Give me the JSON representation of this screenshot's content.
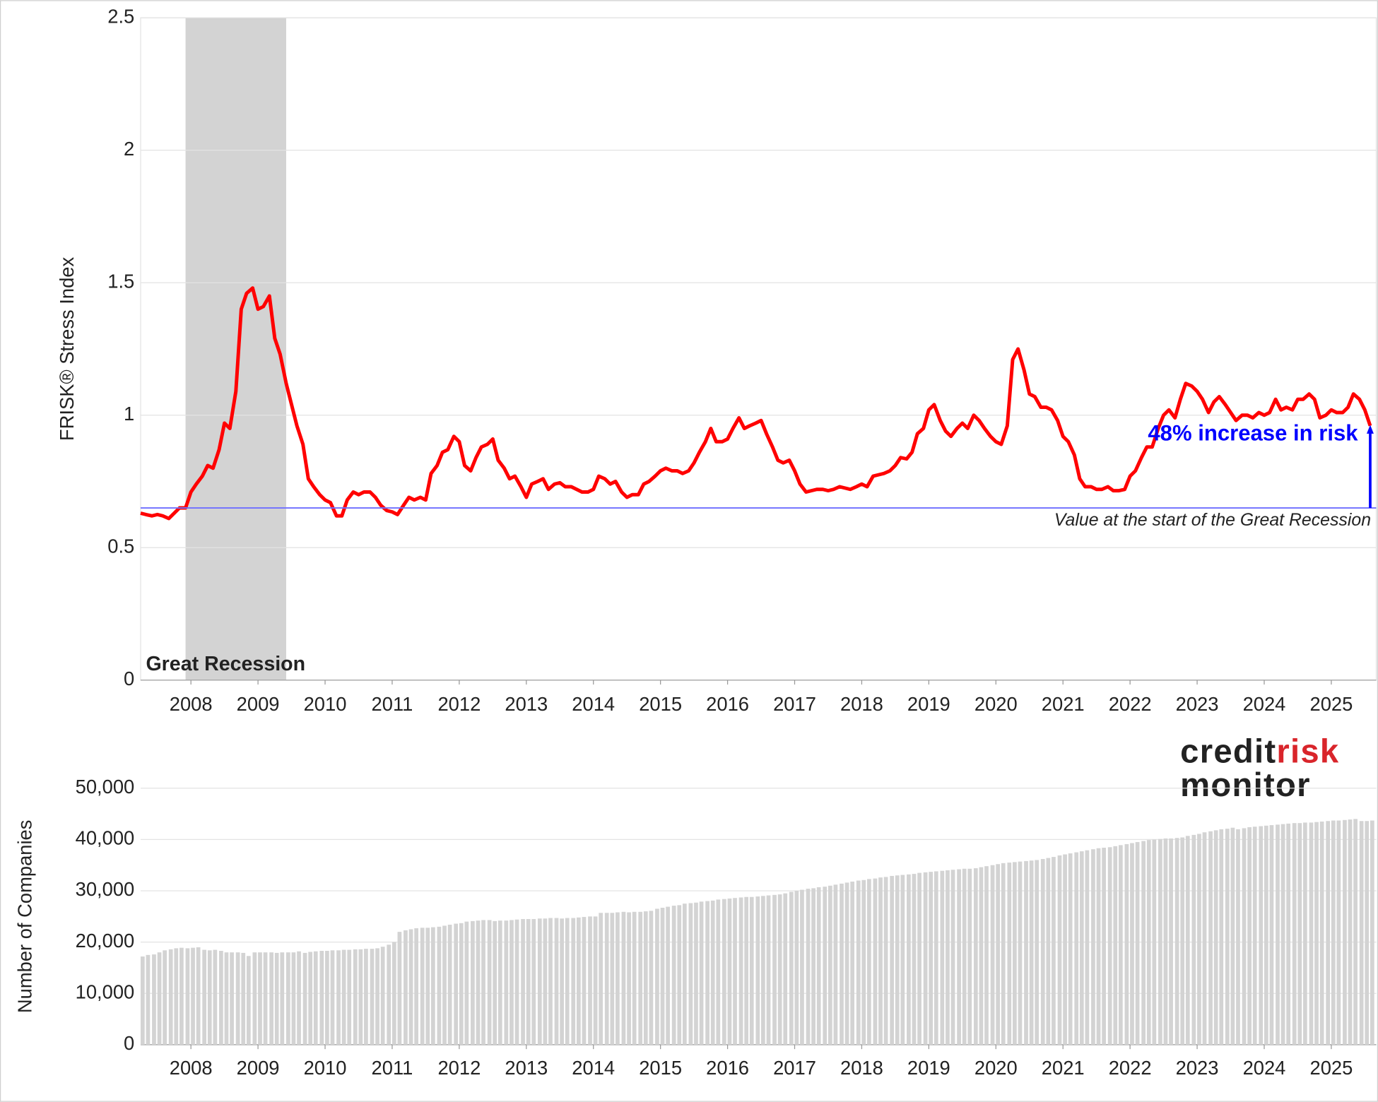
{
  "chart_data": [
    {
      "type": "line",
      "y_label": "FRISK® Stress Index",
      "color": "#ff0000",
      "xlim": [
        2007.25,
        2025.67
      ],
      "xticks": [
        2008,
        2009,
        2010,
        2011,
        2012,
        2013,
        2014,
        2015,
        2016,
        2017,
        2018,
        2019,
        2020,
        2021,
        2022,
        2023,
        2024,
        2025
      ],
      "ylim": [
        0,
        2.5
      ],
      "yticks": [
        0,
        0.5,
        1,
        1.5,
        2,
        2.5
      ],
      "grid": true,
      "shaded_region": {
        "x": [
          2007.92,
          2009.42
        ],
        "label": "Great Recession",
        "color": "#d3d3d3"
      },
      "reference_line": {
        "value": 0.65,
        "label": "Value at the start of the Great Recession",
        "color": "#6f6fff"
      },
      "annotation": {
        "text": "48% increase in risk",
        "color": "#0000ff"
      },
      "x": [
        2007.25,
        2007.33,
        2007.42,
        2007.5,
        2007.58,
        2007.67,
        2007.75,
        2007.83,
        2007.92,
        2008,
        2008.08,
        2008.17,
        2008.25,
        2008.33,
        2008.42,
        2008.5,
        2008.58,
        2008.67,
        2008.75,
        2008.83,
        2008.92,
        2009,
        2009.08,
        2009.17,
        2009.25,
        2009.33,
        2009.42,
        2009.5,
        2009.58,
        2009.67,
        2009.75,
        2009.83,
        2009.92,
        2010,
        2010.08,
        2010.17,
        2010.25,
        2010.33,
        2010.42,
        2010.5,
        2010.58,
        2010.67,
        2010.75,
        2010.83,
        2010.92,
        2011,
        2011.08,
        2011.17,
        2011.25,
        2011.33,
        2011.42,
        2011.5,
        2011.58,
        2011.67,
        2011.75,
        2011.83,
        2011.92,
        2012,
        2012.08,
        2012.17,
        2012.25,
        2012.33,
        2012.42,
        2012.5,
        2012.58,
        2012.67,
        2012.75,
        2012.83,
        2012.92,
        2013,
        2013.08,
        2013.17,
        2013.25,
        2013.33,
        2013.42,
        2013.5,
        2013.58,
        2013.67,
        2013.75,
        2013.83,
        2013.92,
        2014,
        2014.08,
        2014.17,
        2014.25,
        2014.33,
        2014.42,
        2014.5,
        2014.58,
        2014.67,
        2014.75,
        2014.83,
        2014.92,
        2015,
        2015.08,
        2015.17,
        2015.25,
        2015.33,
        2015.42,
        2015.5,
        2015.58,
        2015.67,
        2015.75,
        2015.83,
        2015.92,
        2016,
        2016.08,
        2016.17,
        2016.25,
        2016.33,
        2016.42,
        2016.5,
        2016.58,
        2016.67,
        2016.75,
        2016.83,
        2016.92,
        2017,
        2017.08,
        2017.17,
        2017.25,
        2017.33,
        2017.42,
        2017.5,
        2017.58,
        2017.67,
        2017.75,
        2017.83,
        2017.92,
        2018,
        2018.08,
        2018.17,
        2018.25,
        2018.33,
        2018.42,
        2018.5,
        2018.58,
        2018.67,
        2018.75,
        2018.83,
        2018.92,
        2019,
        2019.08,
        2019.17,
        2019.25,
        2019.33,
        2019.42,
        2019.5,
        2019.58,
        2019.67,
        2019.75,
        2019.83,
        2019.92,
        2020,
        2020.08,
        2020.17,
        2020.25,
        2020.33,
        2020.42,
        2020.5,
        2020.58,
        2020.67,
        2020.75,
        2020.83,
        2020.92,
        2021,
        2021.08,
        2021.17,
        2021.25,
        2021.33,
        2021.42,
        2021.5,
        2021.58,
        2021.67,
        2021.75,
        2021.83,
        2021.92,
        2022,
        2022.08,
        2022.17,
        2022.25,
        2022.33,
        2022.42,
        2022.5,
        2022.58,
        2022.67,
        2022.75,
        2022.83,
        2022.92,
        2023,
        2023.08,
        2023.17,
        2023.25,
        2023.33,
        2023.42,
        2023.5,
        2023.58,
        2023.67,
        2023.75,
        2023.83,
        2023.92,
        2024,
        2024.08,
        2024.17,
        2024.25,
        2024.33,
        2024.42,
        2024.5,
        2024.58,
        2024.67,
        2024.75,
        2024.83,
        2024.92,
        2025,
        2025.08,
        2025.17,
        2025.25,
        2025.33,
        2025.42,
        2025.5,
        2025.58
      ],
      "values": [
        0.63,
        0.625,
        0.62,
        0.625,
        0.62,
        0.61,
        0.63,
        0.65,
        0.65,
        0.71,
        0.74,
        0.77,
        0.81,
        0.8,
        0.87,
        0.97,
        0.95,
        1.09,
        1.4,
        1.46,
        1.48,
        1.4,
        1.41,
        1.45,
        1.29,
        1.23,
        1.12,
        1.04,
        0.96,
        0.89,
        0.76,
        0.73,
        0.7,
        0.68,
        0.67,
        0.62,
        0.62,
        0.68,
        0.71,
        0.7,
        0.71,
        0.71,
        0.69,
        0.66,
        0.64,
        0.635,
        0.625,
        0.66,
        0.69,
        0.68,
        0.69,
        0.68,
        0.78,
        0.81,
        0.86,
        0.87,
        0.92,
        0.9,
        0.81,
        0.79,
        0.84,
        0.88,
        0.89,
        0.91,
        0.83,
        0.8,
        0.76,
        0.77,
        0.73,
        0.69,
        0.74,
        0.75,
        0.76,
        0.72,
        0.74,
        0.745,
        0.73,
        0.73,
        0.72,
        0.71,
        0.71,
        0.72,
        0.77,
        0.76,
        0.74,
        0.75,
        0.71,
        0.69,
        0.7,
        0.7,
        0.74,
        0.75,
        0.77,
        0.79,
        0.8,
        0.79,
        0.79,
        0.78,
        0.79,
        0.82,
        0.86,
        0.9,
        0.95,
        0.9,
        0.9,
        0.91,
        0.95,
        0.99,
        0.95,
        0.96,
        0.97,
        0.98,
        0.93,
        0.88,
        0.83,
        0.82,
        0.83,
        0.79,
        0.74,
        0.71,
        0.715,
        0.72,
        0.72,
        0.715,
        0.72,
        0.73,
        0.725,
        0.72,
        0.73,
        0.74,
        0.73,
        0.77,
        0.775,
        0.78,
        0.79,
        0.81,
        0.84,
        0.835,
        0.86,
        0.93,
        0.95,
        1.02,
        1.04,
        0.98,
        0.94,
        0.92,
        0.95,
        0.97,
        0.95,
        1.0,
        0.98,
        0.95,
        0.92,
        0.9,
        0.89,
        0.96,
        1.21,
        1.25,
        1.17,
        1.08,
        1.07,
        1.03,
        1.03,
        1.02,
        0.98,
        0.92,
        0.9,
        0.85,
        0.76,
        0.73,
        0.73,
        0.72,
        0.72,
        0.73,
        0.715,
        0.715,
        0.72,
        0.77,
        0.79,
        0.84,
        0.88,
        0.88,
        0.95,
        1.0,
        1.02,
        0.99,
        1.06,
        1.12,
        1.11,
        1.09,
        1.06,
        1.01,
        1.05,
        1.07,
        1.04,
        1.01,
        0.98,
        1.0,
        1.0,
        0.99,
        1.01,
        1.0,
        1.01,
        1.06,
        1.02,
        1.03,
        1.02,
        1.06,
        1.06,
        1.08,
        1.06,
        0.99,
        1.0,
        1.02,
        1.01,
        1.01,
        1.03,
        1.08,
        1.06,
        1.02,
        0.96
      ]
    },
    {
      "type": "bar",
      "y_label": "Number of Companies",
      "color": "#d3d3d3",
      "xlim": [
        2007.25,
        2025.67
      ],
      "xticks": [
        2008,
        2009,
        2010,
        2011,
        2012,
        2013,
        2014,
        2015,
        2016,
        2017,
        2018,
        2019,
        2020,
        2021,
        2022,
        2023,
        2024,
        2025
      ],
      "ylim": [
        0,
        50000
      ],
      "yticks": [
        0,
        {
          "value": 10000,
          "label": "10,000"
        },
        {
          "value": 20000,
          "label": "20,000"
        },
        {
          "value": 30000,
          "label": "30,000"
        },
        {
          "value": 40000,
          "label": "40,000"
        },
        {
          "value": 50000,
          "label": "50,000"
        }
      ],
      "grid": true,
      "x": [
        2007.25,
        2007.33,
        2007.42,
        2007.5,
        2007.58,
        2007.67,
        2007.75,
        2007.83,
        2007.92,
        2008,
        2008.08,
        2008.17,
        2008.25,
        2008.33,
        2008.42,
        2008.5,
        2008.58,
        2008.67,
        2008.75,
        2008.83,
        2008.92,
        2009,
        2009.08,
        2009.17,
        2009.25,
        2009.33,
        2009.42,
        2009.5,
        2009.58,
        2009.67,
        2009.75,
        2009.83,
        2009.92,
        2010,
        2010.08,
        2010.17,
        2010.25,
        2010.33,
        2010.42,
        2010.5,
        2010.58,
        2010.67,
        2010.75,
        2010.83,
        2010.92,
        2011,
        2011.08,
        2011.17,
        2011.25,
        2011.33,
        2011.42,
        2011.5,
        2011.58,
        2011.67,
        2011.75,
        2011.83,
        2011.92,
        2012,
        2012.08,
        2012.17,
        2012.25,
        2012.33,
        2012.42,
        2012.5,
        2012.58,
        2012.67,
        2012.75,
        2012.83,
        2012.92,
        2013,
        2013.08,
        2013.17,
        2013.25,
        2013.33,
        2013.42,
        2013.5,
        2013.58,
        2013.67,
        2013.75,
        2013.83,
        2013.92,
        2014,
        2014.08,
        2014.17,
        2014.25,
        2014.33,
        2014.42,
        2014.5,
        2014.58,
        2014.67,
        2014.75,
        2014.83,
        2014.92,
        2015,
        2015.08,
        2015.17,
        2015.25,
        2015.33,
        2015.42,
        2015.5,
        2015.58,
        2015.67,
        2015.75,
        2015.83,
        2015.92,
        2016,
        2016.08,
        2016.17,
        2016.25,
        2016.33,
        2016.42,
        2016.5,
        2016.58,
        2016.67,
        2016.75,
        2016.83,
        2016.92,
        2017,
        2017.08,
        2017.17,
        2017.25,
        2017.33,
        2017.42,
        2017.5,
        2017.58,
        2017.67,
        2017.75,
        2017.83,
        2017.92,
        2018,
        2018.08,
        2018.17,
        2018.25,
        2018.33,
        2018.42,
        2018.5,
        2018.58,
        2018.67,
        2018.75,
        2018.83,
        2018.92,
        2019,
        2019.08,
        2019.17,
        2019.25,
        2019.33,
        2019.42,
        2019.5,
        2019.58,
        2019.67,
        2019.75,
        2019.83,
        2019.92,
        2020,
        2020.08,
        2020.17,
        2020.25,
        2020.33,
        2020.42,
        2020.5,
        2020.58,
        2020.67,
        2020.75,
        2020.83,
        2020.92,
        2021,
        2021.08,
        2021.17,
        2021.25,
        2021.33,
        2021.42,
        2021.5,
        2021.58,
        2021.67,
        2021.75,
        2021.83,
        2021.92,
        2022,
        2022.08,
        2022.17,
        2022.25,
        2022.33,
        2022.42,
        2022.5,
        2022.58,
        2022.67,
        2022.75,
        2022.83,
        2022.92,
        2023,
        2023.08,
        2023.17,
        2023.25,
        2023.33,
        2023.42,
        2023.5,
        2023.58,
        2023.67,
        2023.75,
        2023.83,
        2023.92,
        2024,
        2024.08,
        2024.17,
        2024.25,
        2024.33,
        2024.42,
        2024.5,
        2024.58,
        2024.67,
        2024.75,
        2024.83,
        2024.92,
        2025,
        2025.08,
        2025.17,
        2025.25,
        2025.33,
        2025.42,
        2025.5,
        2025.58
      ],
      "values": [
        17200,
        17500,
        17600,
        18000,
        18400,
        18600,
        18800,
        18900,
        18800,
        18900,
        19000,
        18500,
        18400,
        18500,
        18300,
        18000,
        18000,
        18000,
        17900,
        17300,
        18000,
        18000,
        18000,
        18000,
        17900,
        18000,
        18000,
        18000,
        18200,
        17900,
        18100,
        18200,
        18300,
        18300,
        18400,
        18400,
        18500,
        18500,
        18600,
        18600,
        18700,
        18700,
        18800,
        19100,
        19500,
        20000,
        22000,
        22300,
        22500,
        22700,
        22800,
        22800,
        22900,
        23000,
        23200,
        23400,
        23600,
        23700,
        24000,
        24100,
        24200,
        24300,
        24300,
        24100,
        24200,
        24200,
        24300,
        24400,
        24500,
        24500,
        24500,
        24600,
        24600,
        24700,
        24700,
        24600,
        24700,
        24700,
        24800,
        24900,
        25000,
        25000,
        25700,
        25700,
        25700,
        25800,
        25900,
        25800,
        25900,
        25900,
        26000,
        26100,
        26500,
        26700,
        26900,
        27100,
        27200,
        27500,
        27600,
        27700,
        27900,
        28000,
        28100,
        28300,
        28400,
        28500,
        28600,
        28700,
        28800,
        28800,
        28900,
        29000,
        29100,
        29200,
        29300,
        29500,
        29800,
        30000,
        30200,
        30400,
        30500,
        30700,
        30800,
        31000,
        31200,
        31400,
        31600,
        31800,
        32000,
        32100,
        32300,
        32400,
        32600,
        32700,
        32900,
        33000,
        33100,
        33200,
        33300,
        33500,
        33600,
        33700,
        33800,
        33900,
        34000,
        34100,
        34200,
        34300,
        34300,
        34400,
        34600,
        34800,
        35000,
        35200,
        35400,
        35500,
        35600,
        35700,
        35800,
        35900,
        36000,
        36200,
        36400,
        36600,
        36900,
        37100,
        37300,
        37500,
        37700,
        37900,
        38100,
        38300,
        38400,
        38500,
        38700,
        38900,
        39100,
        39300,
        39500,
        39700,
        39900,
        40000,
        40100,
        40200,
        40200,
        40300,
        40400,
        40700,
        40900,
        41100,
        41400,
        41600,
        41800,
        42000,
        42100,
        42300,
        42000,
        42200,
        42400,
        42500,
        42600,
        42700,
        42800,
        42900,
        43000,
        43100,
        43200,
        43200,
        43300,
        43300,
        43400,
        43500,
        43600,
        43700,
        43700,
        43800,
        43900,
        44000,
        43600,
        43600,
        43700
      ]
    }
  ],
  "logo": {
    "line1": [
      "credit",
      "risk"
    ],
    "line2": "monitor"
  }
}
